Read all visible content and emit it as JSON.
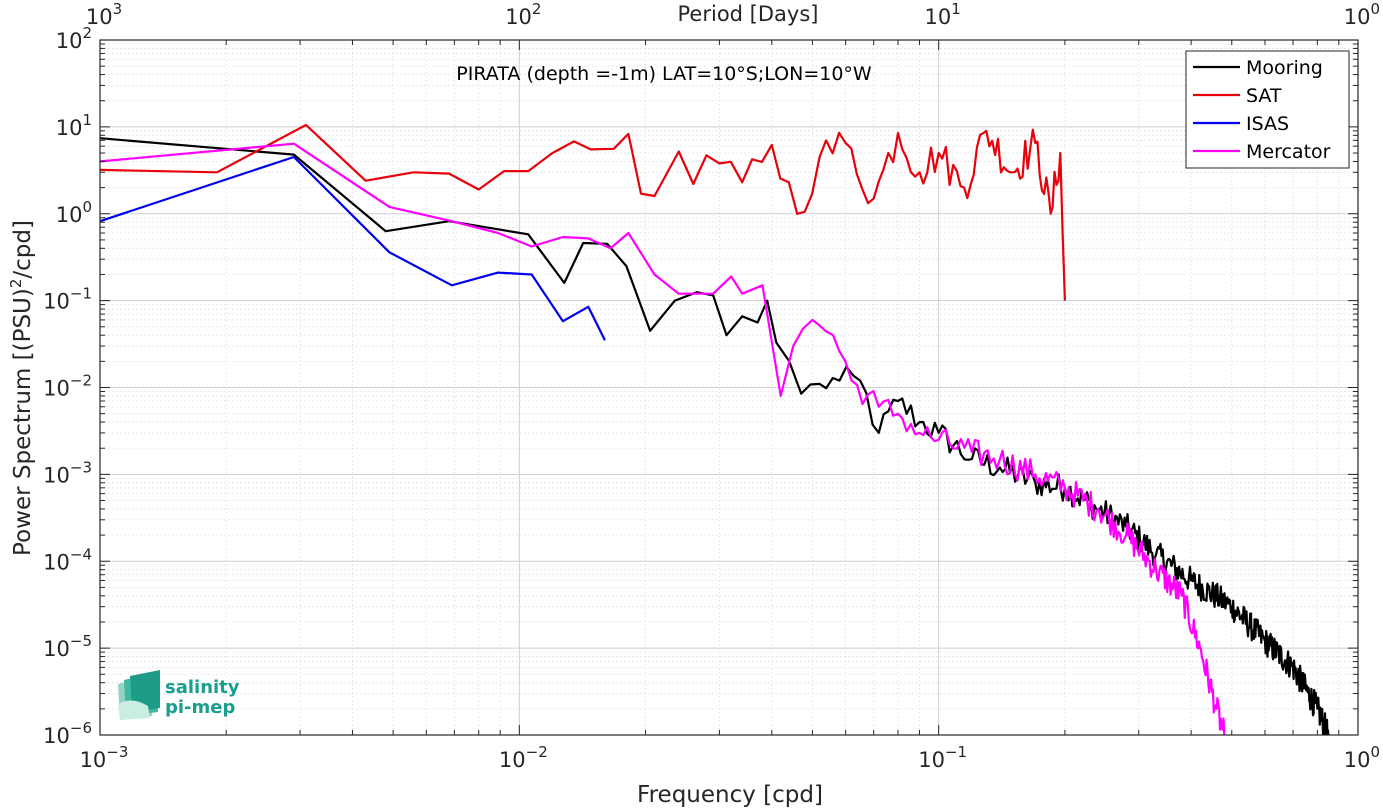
{
  "chart_data": {
    "type": "line",
    "title": "PIRATA (depth =-1m) LAT=10°S;LON=10°W",
    "xlabel": "Frequency [cpd]",
    "ylabel": "Power Spectrum [(PSU)²/cpd]",
    "ylabel_main": "Power Spectrum [(PSU)",
    "ylabel_sup": "2",
    "ylabel_tail": "/cpd]",
    "top_xlabel": "Period [Days]",
    "xscale": "log",
    "yscale": "log",
    "xlim": [
      0.001,
      1
    ],
    "ylim": [
      1e-06,
      100
    ],
    "grid": true,
    "legend_position": "top-right",
    "x_ticks": [
      {
        "value": 0.001,
        "base": "10",
        "exp": "-3"
      },
      {
        "value": 0.01,
        "base": "10",
        "exp": "-2"
      },
      {
        "value": 0.1,
        "base": "10",
        "exp": "-1"
      },
      {
        "value": 1,
        "base": "10",
        "exp": "0"
      }
    ],
    "top_ticks": [
      {
        "value": 0.001,
        "base": "10",
        "exp": "3"
      },
      {
        "value": 0.01,
        "base": "10",
        "exp": "2"
      },
      {
        "value": 0.1,
        "base": "10",
        "exp": "1"
      },
      {
        "value": 1,
        "base": "10",
        "exp": "0"
      }
    ],
    "y_ticks": [
      {
        "value": 100,
        "base": "10",
        "exp": "2"
      },
      {
        "value": 10,
        "base": "10",
        "exp": "1"
      },
      {
        "value": 1,
        "base": "10",
        "exp": "0"
      },
      {
        "value": 0.1,
        "base": "10",
        "exp": "-1"
      },
      {
        "value": 0.01,
        "base": "10",
        "exp": "-2"
      },
      {
        "value": 0.001,
        "base": "10",
        "exp": "-3"
      },
      {
        "value": 0.0001,
        "base": "10",
        "exp": "-4"
      },
      {
        "value": 1e-05,
        "base": "10",
        "exp": "-5"
      },
      {
        "value": 1e-06,
        "base": "10",
        "exp": "-6"
      }
    ],
    "series": [
      {
        "name": "Mooring",
        "color": "#000000",
        "anchors": [
          [
            0.001,
            7.4
          ],
          [
            0.0029,
            4.8
          ],
          [
            0.0048,
            0.63
          ],
          [
            0.0068,
            0.82
          ],
          [
            0.0105,
            0.58
          ],
          [
            0.0128,
            0.16
          ],
          [
            0.0142,
            0.46
          ],
          [
            0.0162,
            0.45
          ],
          [
            0.018,
            0.25
          ],
          [
            0.0205,
            0.045
          ],
          [
            0.0235,
            0.1
          ],
          [
            0.0265,
            0.125
          ],
          [
            0.029,
            0.115
          ],
          [
            0.0312,
            0.04
          ],
          [
            0.034,
            0.066
          ],
          [
            0.037,
            0.056
          ],
          [
            0.039,
            0.1
          ],
          [
            0.041,
            0.033
          ],
          [
            0.044,
            0.02
          ],
          [
            0.047,
            0.0085
          ],
          [
            0.052,
            0.011
          ],
          [
            0.058,
            0.012
          ],
          [
            0.065,
            0.012
          ],
          [
            0.072,
            0.003
          ],
          [
            0.08,
            0.007
          ],
          [
            0.09,
            0.004
          ],
          [
            0.1,
            0.003
          ],
          [
            0.12,
            0.0015
          ],
          [
            0.14,
            0.0012
          ],
          [
            0.17,
            0.0008
          ],
          [
            0.2,
            0.0007
          ],
          [
            0.24,
            0.0004
          ],
          [
            0.28,
            0.00025
          ],
          [
            0.33,
            0.00012
          ],
          [
            0.4,
            6e-05
          ],
          [
            0.5,
            3e-05
          ],
          [
            0.6,
            1.2e-05
          ],
          [
            0.7,
            6e-06
          ],
          [
            0.8,
            2e-06
          ],
          [
            0.85,
            1e-06
          ]
        ]
      },
      {
        "name": "SAT",
        "color": "#e8000b",
        "anchors": [
          [
            0.001,
            3.2
          ],
          [
            0.0019,
            3.0
          ],
          [
            0.0031,
            10.5
          ],
          [
            0.0043,
            2.4
          ],
          [
            0.0056,
            3.0
          ],
          [
            0.0068,
            2.9
          ],
          [
            0.008,
            1.9
          ],
          [
            0.0092,
            3.1
          ],
          [
            0.0105,
            3.1
          ],
          [
            0.012,
            5.0
          ],
          [
            0.0135,
            6.8
          ],
          [
            0.0148,
            5.5
          ],
          [
            0.0168,
            5.6
          ],
          [
            0.0182,
            8.3
          ],
          [
            0.0195,
            1.7
          ],
          [
            0.021,
            1.6
          ],
          [
            0.024,
            5.2
          ],
          [
            0.026,
            2.2
          ],
          [
            0.03,
            3.8
          ],
          [
            0.034,
            2.3
          ],
          [
            0.04,
            6.2
          ],
          [
            0.046,
            1.0
          ],
          [
            0.052,
            4.5
          ],
          [
            0.06,
            6.5
          ],
          [
            0.07,
            1.5
          ],
          [
            0.08,
            8.5
          ],
          [
            0.09,
            3.0
          ],
          [
            0.1,
            5.0
          ],
          [
            0.115,
            2.0
          ],
          [
            0.13,
            9.0
          ],
          [
            0.15,
            3.0
          ],
          [
            0.17,
            6.5
          ],
          [
            0.185,
            1.0
          ],
          [
            0.195,
            5.0
          ],
          [
            0.2,
            0.1
          ]
        ]
      },
      {
        "name": "ISAS",
        "color": "#0000ee",
        "points": [
          [
            0.001,
            0.82
          ],
          [
            0.0029,
            4.5
          ],
          [
            0.0049,
            0.36
          ],
          [
            0.0069,
            0.15
          ],
          [
            0.0089,
            0.21
          ],
          [
            0.0107,
            0.2
          ],
          [
            0.0127,
            0.058
          ],
          [
            0.0146,
            0.085
          ],
          [
            0.016,
            0.035
          ]
        ]
      },
      {
        "name": "Mercator",
        "color": "#ff00ff",
        "anchors": [
          [
            0.001,
            4.0
          ],
          [
            0.0029,
            6.4
          ],
          [
            0.0049,
            1.2
          ],
          [
            0.0069,
            0.82
          ],
          [
            0.0089,
            0.6
          ],
          [
            0.0107,
            0.42
          ],
          [
            0.0127,
            0.54
          ],
          [
            0.0146,
            0.52
          ],
          [
            0.0165,
            0.4
          ],
          [
            0.0182,
            0.6
          ],
          [
            0.021,
            0.2
          ],
          [
            0.024,
            0.12
          ],
          [
            0.029,
            0.12
          ],
          [
            0.032,
            0.19
          ],
          [
            0.034,
            0.12
          ],
          [
            0.038,
            0.15
          ],
          [
            0.042,
            0.008
          ],
          [
            0.045,
            0.03
          ],
          [
            0.05,
            0.06
          ],
          [
            0.056,
            0.04
          ],
          [
            0.062,
            0.012
          ],
          [
            0.072,
            0.006
          ],
          [
            0.08,
            0.005
          ],
          [
            0.09,
            0.003
          ],
          [
            0.1,
            0.0025
          ],
          [
            0.12,
            0.0018
          ],
          [
            0.14,
            0.0015
          ],
          [
            0.17,
            0.001
          ],
          [
            0.2,
            0.0007
          ],
          [
            0.24,
            0.0004
          ],
          [
            0.28,
            0.0002
          ],
          [
            0.33,
            8e-05
          ],
          [
            0.38,
            4e-05
          ],
          [
            0.42,
            1e-05
          ],
          [
            0.46,
            2e-06
          ],
          [
            0.48,
            1e-06
          ]
        ]
      }
    ],
    "logo": {
      "line1": "salinity",
      "line2": "pi-mep"
    }
  }
}
